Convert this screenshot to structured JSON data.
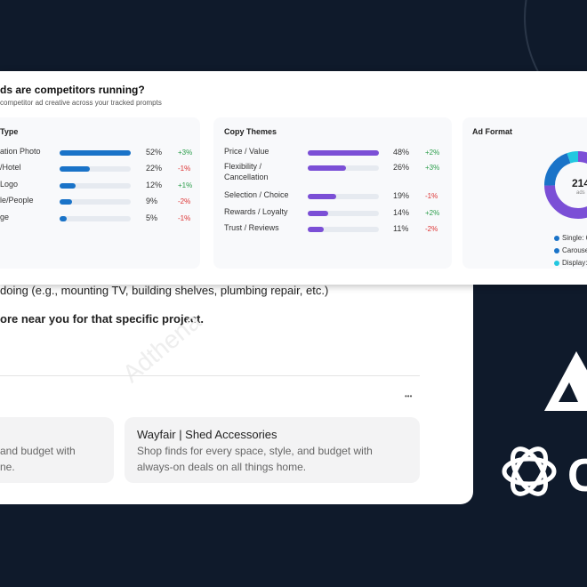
{
  "report": {
    "title": "ds are competitors running?",
    "subtitle": "competitor ad creative across your tracked prompts",
    "panels": [
      {
        "title": "Type",
        "color": "#1a73c8",
        "rows": [
          {
            "label": "ation Photo",
            "share": {
              "value": 52,
              "label": "52%"
            },
            "change": "+3%"
          },
          {
            "label": "/Hotel",
            "share": {
              "value": 22,
              "label": "22%"
            },
            "change": "-1%"
          },
          {
            "label": "Logo",
            "share": {
              "value": 12,
              "label": "12%"
            },
            "change": "+1%"
          },
          {
            "label": "le/People",
            "share": {
              "value": 9,
              "label": "9%"
            },
            "change": "-2%"
          },
          {
            "label": "ge",
            "share": {
              "value": 5,
              "label": "5%"
            },
            "change": "-1%"
          }
        ]
      },
      {
        "title": "Copy Themes",
        "color": "#7b4fd6",
        "rows": [
          {
            "label": "Price / Value",
            "share": {
              "value": 48,
              "label": "48%"
            },
            "change": "+2%"
          },
          {
            "label": "Flexibility / Cancellation",
            "share": {
              "value": 26,
              "label": "26%"
            },
            "change": "+3%"
          },
          {
            "label": "Selection / Choice",
            "share": {
              "value": 19,
              "label": "19%"
            },
            "change": "-1%"
          },
          {
            "label": "Rewards / Loyalty",
            "share": {
              "value": 14,
              "label": "14%"
            },
            "change": "+2%"
          },
          {
            "label": "Trust / Reviews",
            "share": {
              "value": 11,
              "label": "11%"
            },
            "change": "-2%"
          }
        ]
      }
    ],
    "format": {
      "title": "Ad Format",
      "total": 214,
      "unit": "ads",
      "legend": [
        "Single: 6",
        "Carouse",
        "Display:"
      ]
    }
  },
  "chat": {
    "line1": "doing (e.g., mounting TV, building shelves, plumbing repair, etc.)",
    "line2": "ore near you for that specific project.",
    "more": "•••",
    "watermark": "Adthena",
    "cards": [
      {
        "desc1": "and budget with",
        "desc2": "ne."
      },
      {
        "title": "Wayfair | Shed Accessories",
        "desc1": "Shop finds for every space, style, and budget with",
        "desc2": "always-on deals on all things home."
      }
    ]
  },
  "brand": {
    "logo_text": "C"
  }
}
